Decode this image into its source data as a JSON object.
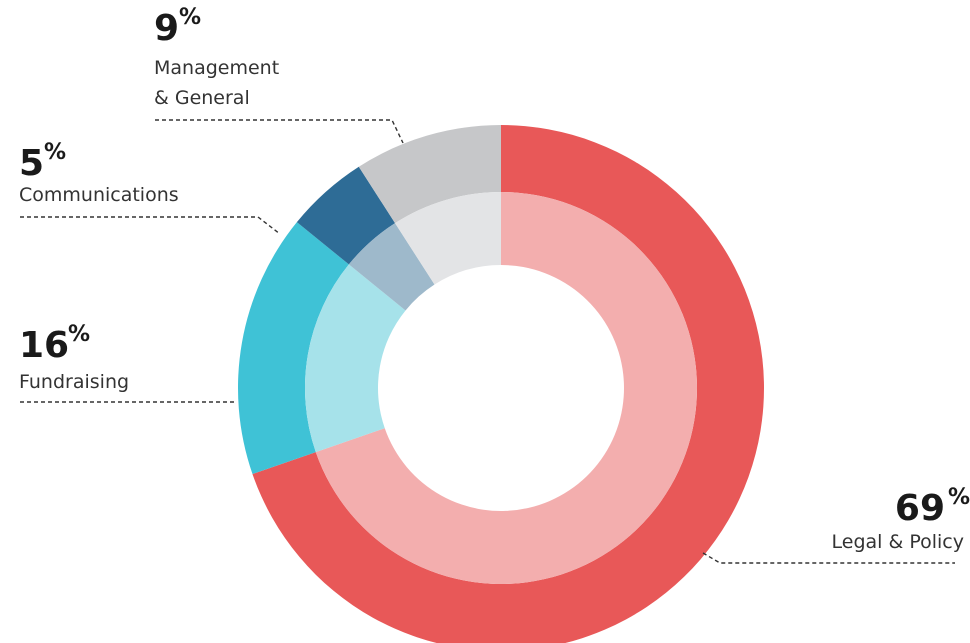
{
  "chart_data": {
    "type": "pie",
    "variant": "donut-double-ring",
    "categories": [
      "Legal & Policy",
      "Fundraising",
      "Communications",
      "Management & General"
    ],
    "values": [
      69,
      16,
      5,
      9
    ],
    "unit": "%",
    "series": [
      {
        "values": [
          69,
          16,
          5,
          9
        ],
        "colors": [
          "#e85858",
          "#3fc2d6",
          "#2e6c96",
          "#c6c7c9"
        ]
      },
      {
        "values": [
          69,
          16,
          5,
          9
        ],
        "colors": [
          "#f3aeae",
          "#a6e2ea",
          "#9eb9cb",
          "#e3e4e6"
        ]
      }
    ],
    "labels": [
      {
        "percent": "69",
        "symbol": "%",
        "lines": [
          "Legal & Policy"
        ]
      },
      {
        "percent": "16",
        "symbol": "%",
        "lines": [
          "Fundraising"
        ]
      },
      {
        "percent": "5",
        "symbol": "%",
        "lines": [
          "Communications"
        ]
      },
      {
        "percent": "9",
        "symbol": "%",
        "lines": [
          "Management",
          "& General"
        ]
      }
    ],
    "legend": "none",
    "grid": false
  }
}
